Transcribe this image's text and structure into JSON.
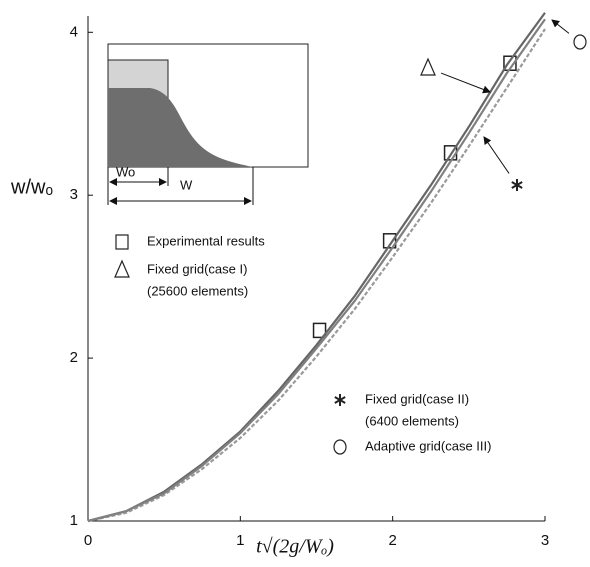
{
  "chart_data": {
    "type": "line",
    "x_label": "t√(2g/Wₒ)",
    "y_label": "w/wₒ",
    "x": [
      0,
      0.25,
      0.5,
      0.75,
      1,
      1.25,
      1.5,
      1.75,
      2,
      2.25,
      2.5,
      2.75,
      3
    ],
    "series": [
      {
        "name": "Experimental results",
        "marker": "square",
        "color": "#333333",
        "x": [
          1.52,
          1.98,
          2.38,
          2.77
        ],
        "values": [
          2.17,
          2.72,
          3.26,
          3.81
        ]
      },
      {
        "name": "Fixed grid(case I)",
        "note": "(25600 elements)",
        "marker": "triangle",
        "color": "#666666",
        "values": [
          1.0,
          1.06,
          1.18,
          1.35,
          1.55,
          1.8,
          2.08,
          2.38,
          2.72,
          3.06,
          3.42,
          3.8,
          4.12
        ]
      },
      {
        "name": "Fixed grid(case II)",
        "note": "(6400 elements)",
        "marker": "star",
        "color": "#9a9a9a",
        "values": [
          1.0,
          1.05,
          1.16,
          1.32,
          1.51,
          1.74,
          2.01,
          2.3,
          2.62,
          2.95,
          3.3,
          3.66,
          4.02
        ]
      },
      {
        "name": "Adaptive grid(case III)",
        "marker": "circle",
        "color": "#808080",
        "values": [
          1.0,
          1.06,
          1.17,
          1.34,
          1.54,
          1.78,
          2.06,
          2.35,
          2.68,
          3.02,
          3.38,
          3.75,
          4.08
        ]
      }
    ],
    "xlim": [
      0,
      3
    ],
    "ylim": [
      1,
      4.1
    ],
    "xticks": [
      0,
      1,
      2,
      3
    ],
    "yticks": [
      1,
      2,
      3,
      4
    ],
    "grid": false,
    "inset": {
      "labels": [
        "Wo",
        "W"
      ]
    }
  }
}
